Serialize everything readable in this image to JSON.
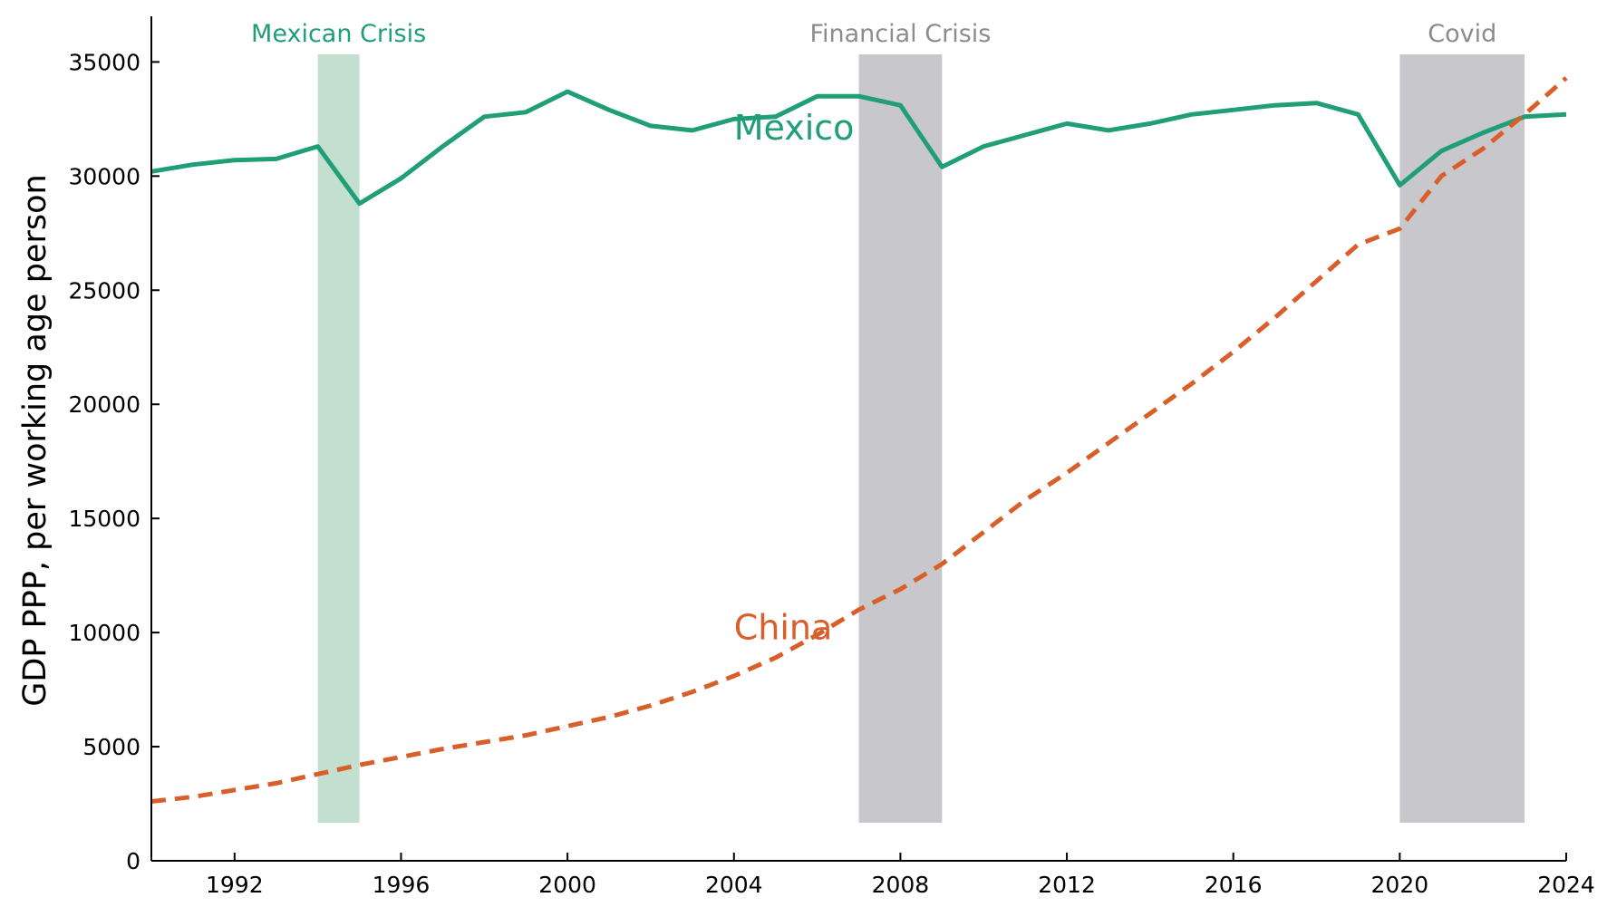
{
  "chart_data": {
    "type": "line",
    "title": "",
    "xlabel": "",
    "ylabel": "GDP PPP, per working age person",
    "xlim": [
      1990,
      2024
    ],
    "ylim": [
      0,
      37000
    ],
    "x_ticks": [
      1992,
      1996,
      2000,
      2004,
      2008,
      2012,
      2016,
      2020,
      2024
    ],
    "y_ticks": [
      0,
      5000,
      10000,
      15000,
      20000,
      25000,
      30000,
      35000
    ],
    "grid": false,
    "legend": "none",
    "x": [
      1990,
      1991,
      1992,
      1993,
      1994,
      1995,
      1996,
      1997,
      1998,
      1999,
      2000,
      2001,
      2002,
      2003,
      2004,
      2005,
      2006,
      2007,
      2008,
      2009,
      2010,
      2011,
      2012,
      2013,
      2014,
      2015,
      2016,
      2017,
      2018,
      2019,
      2020,
      2021,
      2022,
      2023,
      2024
    ],
    "series": [
      {
        "name": "Mexico",
        "color": "#1f9e77",
        "style": "solid",
        "values": [
          30200,
          30500,
          30700,
          30750,
          31300,
          28800,
          29900,
          31300,
          32600,
          32800,
          33700,
          32900,
          32200,
          32000,
          32500,
          32600,
          33500,
          33500,
          33100,
          30400,
          31300,
          31800,
          32300,
          32000,
          32300,
          32700,
          32900,
          33100,
          33200,
          32700,
          29600,
          31100,
          31900,
          32600,
          32700
        ]
      },
      {
        "name": "China",
        "color": "#d95f2a",
        "style": "dashed",
        "values": [
          2600,
          2800,
          3100,
          3400,
          3800,
          4200,
          4550,
          4900,
          5200,
          5500,
          5900,
          6300,
          6800,
          7400,
          8100,
          8900,
          9900,
          11000,
          11900,
          13000,
          14400,
          15800,
          17000,
          18300,
          19600,
          20900,
          22300,
          23800,
          25400,
          27000,
          27700,
          30000,
          31200,
          32700,
          34300
        ]
      }
    ],
    "shaded_regions": [
      {
        "label": "Mexican Crisis",
        "start": 1994,
        "end": 1995,
        "color": "#c2dfcf",
        "label_color": "#1f9e77"
      },
      {
        "label": "Financial Crisis",
        "start": 2007,
        "end": 2009,
        "color": "#c8c8cc",
        "label_color": "#8c8c8c"
      },
      {
        "label": "Covid",
        "start": 2020,
        "end": 2023,
        "color": "#c8c8cc",
        "label_color": "#8c8c8c"
      }
    ]
  }
}
